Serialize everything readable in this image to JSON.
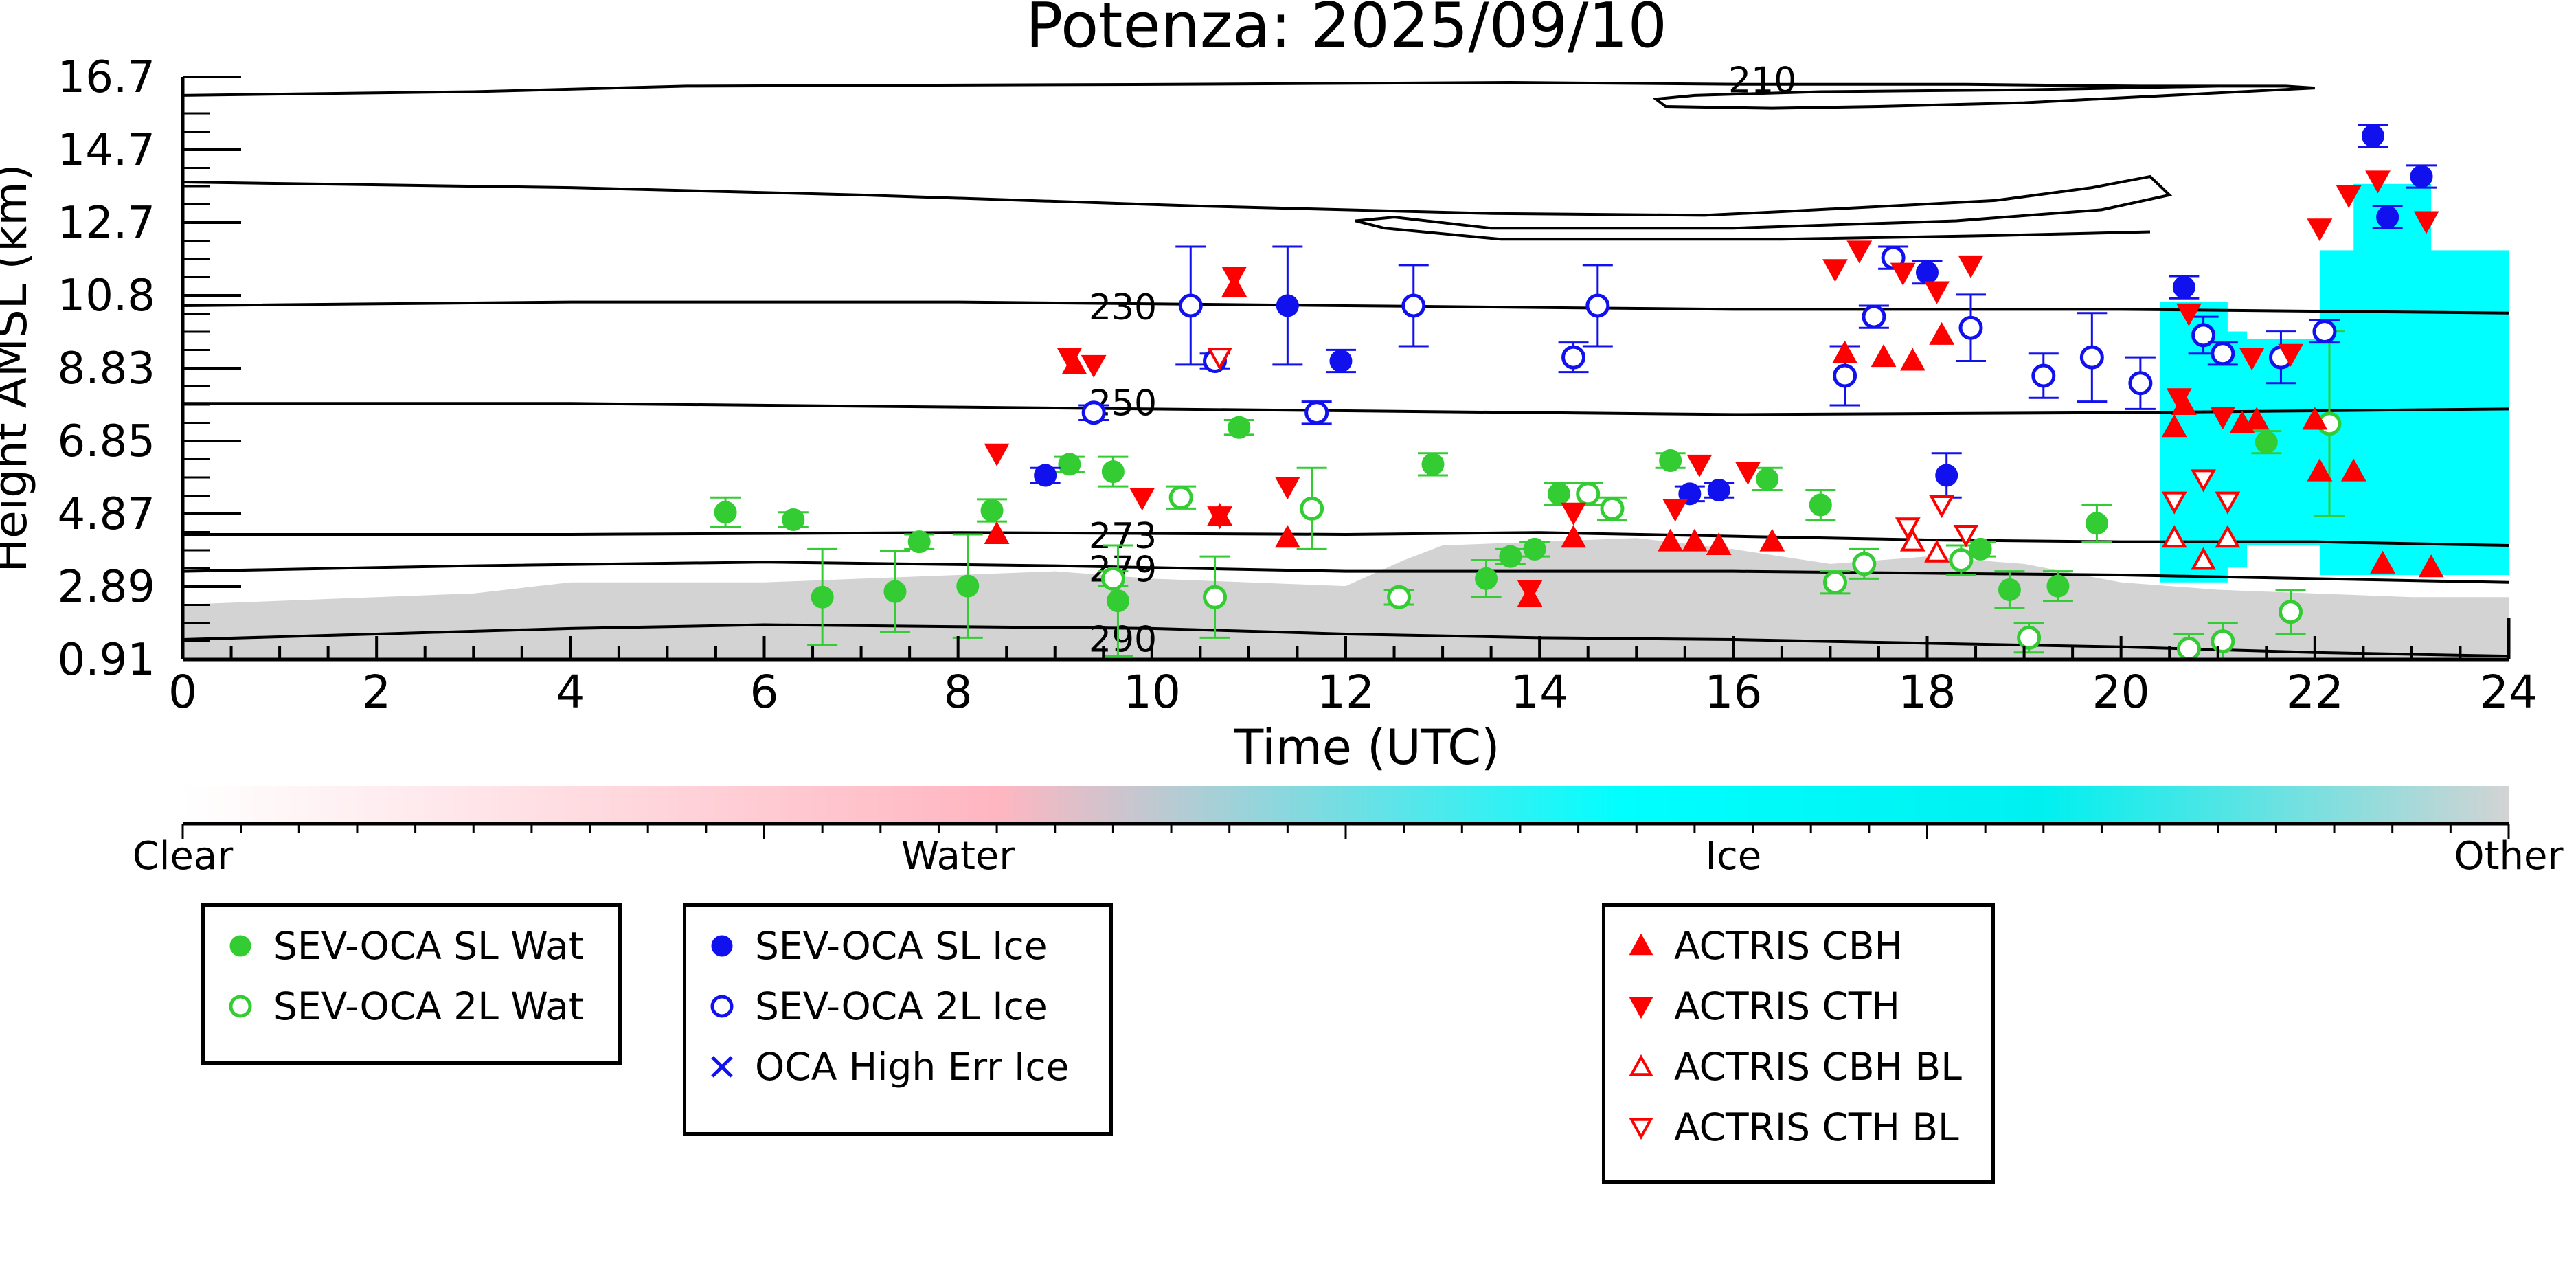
{
  "chart_data": {
    "type": "scatter",
    "title": "Potenza: 2025/09/10",
    "xlabel": "Time (UTC)",
    "ylabel": "Height AMSL (km)",
    "xlim": [
      0,
      24
    ],
    "ylim": [
      0.91,
      16.7
    ],
    "x_ticks": [
      "0",
      "2",
      "4",
      "6",
      "8",
      "10",
      "12",
      "14",
      "16",
      "18",
      "20",
      "22",
      "24"
    ],
    "y_ticks": [
      "0.91",
      "2.89",
      "4.87",
      "6.85",
      "8.83",
      "10.8",
      "12.7",
      "14.7",
      "16.7"
    ],
    "colorbar": {
      "labels": [
        "Clear",
        "Water",
        "Ice",
        "Other"
      ],
      "colors": [
        "#ffffff",
        "#ffb6c1",
        "#00ffff",
        "#d3d3d3"
      ]
    },
    "isotherm_labels": [
      {
        "text": "210",
        "x": 16.3,
        "y": 16.65
      },
      {
        "text": "230",
        "x": 9.7,
        "y": 10.5
      },
      {
        "text": "250",
        "x": 9.7,
        "y": 7.9
      },
      {
        "text": "273",
        "x": 9.7,
        "y": 4.3
      },
      {
        "text": "279",
        "x": 9.7,
        "y": 3.4
      },
      {
        "text": "290",
        "x": 9.7,
        "y": 1.5
      }
    ],
    "isotherms": [
      {
        "name": "210",
        "segments": [
          [
            [
              0.0,
              16.2
            ],
            [
              3.0,
              16.3
            ],
            [
              5.2,
              16.45
            ],
            [
              10.2,
              16.5
            ],
            [
              13.7,
              16.55
            ],
            [
              16.1,
              16.5
            ],
            [
              18.4,
              16.5
            ],
            [
              20.2,
              16.45
            ],
            [
              21.7,
              16.45
            ],
            [
              22.0,
              16.4
            ],
            [
              20.5,
              16.2
            ],
            [
              19.0,
              16.0
            ],
            [
              17.5,
              15.9
            ],
            [
              16.4,
              15.85
            ],
            [
              15.3,
              15.9
            ],
            [
              15.2,
              16.1
            ],
            [
              15.6,
              16.2
            ],
            [
              16.9,
              16.3
            ],
            [
              19.0,
              16.35
            ],
            [
              21.0,
              16.45
            ]
          ],
          [
            [
              0.0,
              13.85
            ],
            [
              4.0,
              13.7
            ],
            [
              7.0,
              13.5
            ],
            [
              10.5,
              13.2
            ],
            [
              13.5,
              13.0
            ],
            [
              15.7,
              12.95
            ],
            [
              16.5,
              13.05
            ],
            [
              18.7,
              13.35
            ],
            [
              19.7,
              13.7
            ],
            [
              20.3,
              14.0
            ],
            [
              20.5,
              13.5
            ],
            [
              19.8,
              13.1
            ],
            [
              18.3,
              12.8
            ],
            [
              16.0,
              12.6
            ],
            [
              13.5,
              12.6
            ],
            [
              12.5,
              12.9
            ],
            [
              12.1,
              12.8
            ],
            [
              12.4,
              12.6
            ],
            [
              13.6,
              12.3
            ],
            [
              16.5,
              12.3
            ],
            [
              18.7,
              12.4
            ],
            [
              20.3,
              12.5
            ]
          ]
        ]
      },
      {
        "name": "230",
        "points": [
          [
            0,
            10.5
          ],
          [
            4,
            10.6
          ],
          [
            8,
            10.6
          ],
          [
            12,
            10.5
          ],
          [
            16,
            10.4
          ],
          [
            20,
            10.4
          ],
          [
            24,
            10.3
          ]
        ]
      },
      {
        "name": "250",
        "points": [
          [
            0,
            7.85
          ],
          [
            4,
            7.85
          ],
          [
            8,
            7.75
          ],
          [
            12,
            7.65
          ],
          [
            16,
            7.55
          ],
          [
            20,
            7.6
          ],
          [
            24,
            7.7
          ]
        ]
      },
      {
        "name": "273",
        "points": [
          [
            0,
            4.3
          ],
          [
            4,
            4.3
          ],
          [
            8,
            4.35
          ],
          [
            12,
            4.3
          ],
          [
            14,
            4.35
          ],
          [
            16,
            4.25
          ],
          [
            18,
            4.15
          ],
          [
            20,
            4.1
          ],
          [
            22,
            4.1
          ],
          [
            24,
            4.0
          ]
        ]
      },
      {
        "name": "279",
        "points": [
          [
            0,
            3.3
          ],
          [
            3,
            3.45
          ],
          [
            6,
            3.55
          ],
          [
            9,
            3.45
          ],
          [
            12,
            3.3
          ],
          [
            16,
            3.3
          ],
          [
            20,
            3.2
          ],
          [
            24,
            3.0
          ]
        ]
      },
      {
        "name": "290",
        "points": [
          [
            0,
            1.45
          ],
          [
            2,
            1.6
          ],
          [
            4,
            1.75
          ],
          [
            6,
            1.85
          ],
          [
            8,
            1.8
          ],
          [
            10,
            1.75
          ],
          [
            12,
            1.6
          ],
          [
            14,
            1.5
          ],
          [
            16,
            1.45
          ],
          [
            18,
            1.35
          ],
          [
            20,
            1.25
          ],
          [
            22,
            1.1
          ],
          [
            24,
            1.0
          ]
        ]
      }
    ],
    "series": [
      {
        "name": "SEV-OCA SL Wat",
        "color": "#33cc33",
        "marker": "circle-filled",
        "points": [
          [
            5.6,
            4.9,
            0.4
          ],
          [
            6.3,
            4.7,
            0.2
          ],
          [
            6.6,
            2.6,
            1.3
          ],
          [
            7.35,
            2.75,
            1.1
          ],
          [
            7.6,
            4.1,
            0.2
          ],
          [
            8.1,
            2.9,
            1.4
          ],
          [
            8.35,
            4.95,
            0.3
          ],
          [
            9.15,
            6.2,
            0.2
          ],
          [
            9.6,
            6.0,
            0.4
          ],
          [
            9.65,
            2.5,
            1.5
          ],
          [
            10.9,
            7.2,
            0.2
          ],
          [
            12.9,
            6.2,
            0.3
          ],
          [
            13.45,
            3.1,
            0.5
          ],
          [
            13.7,
            3.7,
            0.2
          ],
          [
            13.95,
            3.9,
            0.2
          ],
          [
            14.2,
            5.4,
            0.3
          ],
          [
            15.35,
            6.3,
            0.2
          ],
          [
            16.35,
            5.8,
            0.3
          ],
          [
            16.9,
            5.1,
            0.4
          ],
          [
            18.55,
            3.9,
            0.2
          ],
          [
            18.85,
            2.8,
            0.5
          ],
          [
            19.35,
            2.9,
            0.4
          ],
          [
            19.75,
            4.6,
            0.5
          ],
          [
            21.5,
            6.8,
            0.3
          ]
        ]
      },
      {
        "name": "SEV-OCA 2L Wat",
        "color": "#33cc33",
        "marker": "circle-open",
        "points": [
          [
            9.6,
            3.1,
            0.2
          ],
          [
            10.3,
            5.3,
            0.3
          ],
          [
            10.65,
            2.6,
            1.1
          ],
          [
            11.65,
            5.0,
            1.1
          ],
          [
            12.55,
            2.6,
            0.2
          ],
          [
            14.5,
            5.4,
            0.3
          ],
          [
            14.75,
            5.0,
            0.3
          ],
          [
            17.05,
            3.0,
            0.3
          ],
          [
            17.35,
            3.5,
            0.4
          ],
          [
            18.35,
            3.6,
            0.4
          ],
          [
            19.05,
            1.5,
            0.4
          ],
          [
            20.7,
            1.2,
            0.4
          ],
          [
            21.05,
            1.4,
            0.5
          ],
          [
            21.75,
            2.2,
            0.6
          ],
          [
            22.15,
            7.3,
            2.5
          ]
        ]
      },
      {
        "name": "SEV-OCA SL Ice",
        "color": "#1111ee",
        "marker": "circle-filled",
        "points": [
          [
            8.9,
            5.9,
            0.2
          ],
          [
            11.4,
            10.5,
            1.6
          ],
          [
            11.95,
            9.0,
            0.3
          ],
          [
            15.55,
            5.4,
            0.2
          ],
          [
            15.85,
            5.5,
            0.2
          ],
          [
            18.0,
            11.4,
            0.3
          ],
          [
            18.2,
            5.9,
            0.6
          ],
          [
            20.65,
            11.0,
            0.3
          ],
          [
            22.6,
            15.1,
            0.3
          ],
          [
            22.75,
            12.9,
            0.3
          ],
          [
            23.1,
            14.0,
            0.3
          ]
        ]
      },
      {
        "name": "SEV-OCA 2L Ice",
        "color": "#1111ee",
        "marker": "circle-open",
        "points": [
          [
            9.4,
            7.6,
            0.2
          ],
          [
            10.4,
            10.5,
            1.6
          ],
          [
            10.65,
            9.0,
            0.2
          ],
          [
            11.7,
            7.6,
            0.3
          ],
          [
            12.7,
            10.5,
            1.1
          ],
          [
            14.35,
            9.1,
            0.4
          ],
          [
            14.6,
            10.5,
            1.1
          ],
          [
            17.15,
            8.6,
            0.8
          ],
          [
            17.45,
            10.2,
            0.3
          ],
          [
            17.65,
            11.8,
            0.3
          ],
          [
            18.45,
            9.9,
            0.9
          ],
          [
            19.2,
            8.6,
            0.6
          ],
          [
            19.7,
            9.1,
            1.2
          ],
          [
            20.2,
            8.4,
            0.7
          ],
          [
            20.85,
            9.7,
            0.5
          ],
          [
            21.05,
            9.2,
            0.3
          ],
          [
            21.65,
            9.1,
            0.7
          ],
          [
            22.1,
            9.8,
            0.3
          ]
        ]
      },
      {
        "name": "ACTRIS CBH",
        "color": "#ff0000",
        "marker": "triangle-up-filled",
        "points": [
          [
            8.4,
            4.3
          ],
          [
            9.2,
            8.9
          ],
          [
            10.85,
            11.0
          ],
          [
            10.7,
            4.8
          ],
          [
            11.4,
            4.2
          ],
          [
            13.9,
            2.6
          ],
          [
            14.35,
            4.2
          ],
          [
            15.35,
            4.1
          ],
          [
            15.6,
            4.1
          ],
          [
            15.85,
            4.0
          ],
          [
            16.4,
            4.1
          ],
          [
            17.15,
            9.2
          ],
          [
            17.55,
            9.1
          ],
          [
            17.85,
            9.0
          ],
          [
            18.15,
            9.7
          ],
          [
            20.55,
            7.2
          ],
          [
            20.65,
            7.8
          ],
          [
            21.25,
            7.3
          ],
          [
            21.4,
            7.4
          ],
          [
            22.0,
            7.4
          ],
          [
            22.05,
            6.0
          ],
          [
            22.4,
            6.0
          ],
          [
            22.7,
            3.5
          ],
          [
            23.2,
            3.4
          ]
        ]
      },
      {
        "name": "ACTRIS CTH",
        "color": "#ff0000",
        "marker": "triangle-down-filled",
        "points": [
          [
            8.4,
            6.5
          ],
          [
            9.15,
            9.1
          ],
          [
            9.4,
            8.9
          ],
          [
            9.9,
            5.3
          ],
          [
            10.7,
            4.8
          ],
          [
            10.85,
            11.3
          ],
          [
            11.4,
            5.6
          ],
          [
            13.9,
            2.8
          ],
          [
            14.35,
            4.9
          ],
          [
            15.4,
            5.0
          ],
          [
            15.65,
            6.2
          ],
          [
            16.15,
            6.0
          ],
          [
            17.05,
            11.5
          ],
          [
            17.3,
            12.0
          ],
          [
            17.75,
            11.4
          ],
          [
            18.1,
            10.9
          ],
          [
            18.45,
            11.6
          ],
          [
            20.6,
            8.0
          ],
          [
            20.7,
            10.3
          ],
          [
            21.05,
            7.5
          ],
          [
            21.35,
            9.1
          ],
          [
            21.75,
            9.2
          ],
          [
            22.05,
            12.6
          ],
          [
            22.35,
            13.5
          ],
          [
            22.65,
            13.9
          ],
          [
            23.15,
            12.8
          ]
        ]
      },
      {
        "name": "ACTRIS CBH BL",
        "color": "#ff0000",
        "marker": "triangle-up-open",
        "points": [
          [
            17.85,
            4.1
          ],
          [
            18.1,
            3.8
          ],
          [
            20.55,
            4.2
          ],
          [
            20.85,
            3.6
          ],
          [
            21.1,
            4.2
          ]
        ]
      },
      {
        "name": "ACTRIS CTH BL",
        "color": "#ff0000",
        "marker": "triangle-down-open",
        "points": [
          [
            10.7,
            9.1
          ],
          [
            17.8,
            4.5
          ],
          [
            18.15,
            5.1
          ],
          [
            18.4,
            4.3
          ],
          [
            20.55,
            5.2
          ],
          [
            20.85,
            5.8
          ],
          [
            21.1,
            5.2
          ]
        ]
      },
      {
        "name": "OCA High Err Ice",
        "color": "#1111ee",
        "marker": "x",
        "points": []
      }
    ],
    "legends": [
      {
        "entries": [
          "SEV-OCA SL Wat",
          "SEV-OCA 2L Wat"
        ]
      },
      {
        "entries": [
          "SEV-OCA SL Ice",
          "SEV-OCA 2L Ice",
          "OCA High Err Ice"
        ]
      },
      {
        "entries": [
          "ACTRIS CBH",
          "ACTRIS CTH",
          "ACTRIS CBH BL",
          "ACTRIS CTH BL"
        ]
      }
    ]
  }
}
